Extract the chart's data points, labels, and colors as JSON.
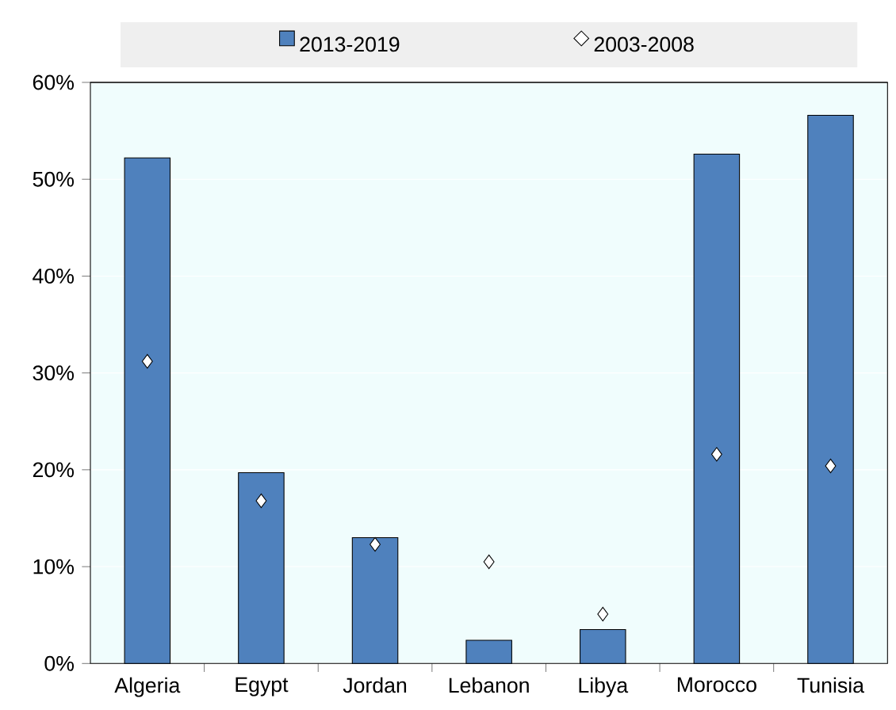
{
  "chart_data": {
    "type": "bar",
    "categories": [
      "Algeria",
      "Egypt",
      "Jordan",
      "Lebanon",
      "Libya",
      "Morocco",
      "Tunisia"
    ],
    "series": [
      {
        "name": "2013-2019",
        "color": "#4f81bd",
        "values": [
          52.2,
          19.7,
          13.0,
          2.4,
          3.5,
          52.6,
          56.6
        ]
      },
      {
        "name": "2003-2008",
        "type": "scatter",
        "color": "#ffffff",
        "marker": "diamond",
        "values": [
          31.2,
          16.8,
          12.3,
          10.5,
          5.1,
          21.6,
          20.4
        ]
      }
    ],
    "ylim": [
      0,
      60
    ],
    "yticks": [
      {
        "value": 0,
        "label": "0%"
      },
      {
        "value": 10,
        "label": "10%"
      },
      {
        "value": 20,
        "label": "20%"
      },
      {
        "value": 30,
        "label": "30%"
      },
      {
        "value": 40,
        "label": "40%"
      },
      {
        "value": 50,
        "label": "50%"
      },
      {
        "value": 60,
        "label": "60%"
      }
    ],
    "grid": "y",
    "legend": "top"
  }
}
